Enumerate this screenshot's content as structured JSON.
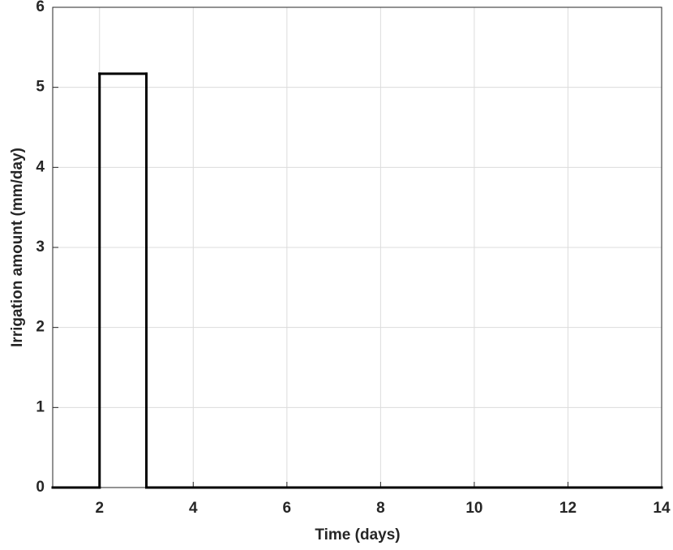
{
  "chart_data": {
    "type": "stairs",
    "x_label": "Time (days)",
    "y_label": "Irrigation amount (mm/day)",
    "x": [
      1,
      2,
      3,
      4,
      5,
      6,
      7,
      8,
      9,
      10,
      11,
      12,
      13,
      14
    ],
    "values": [
      0,
      5.17,
      0,
      0,
      0,
      0,
      0,
      0,
      0,
      0,
      0,
      0,
      0,
      0
    ],
    "color": "#000000",
    "xlim": [
      1,
      14
    ],
    "xticks": [
      2,
      4,
      6,
      8,
      10,
      12,
      14
    ],
    "ylim": [
      0,
      6
    ],
    "yticks": [
      0,
      1,
      2,
      3,
      4,
      5,
      6
    ],
    "grid": true
  }
}
